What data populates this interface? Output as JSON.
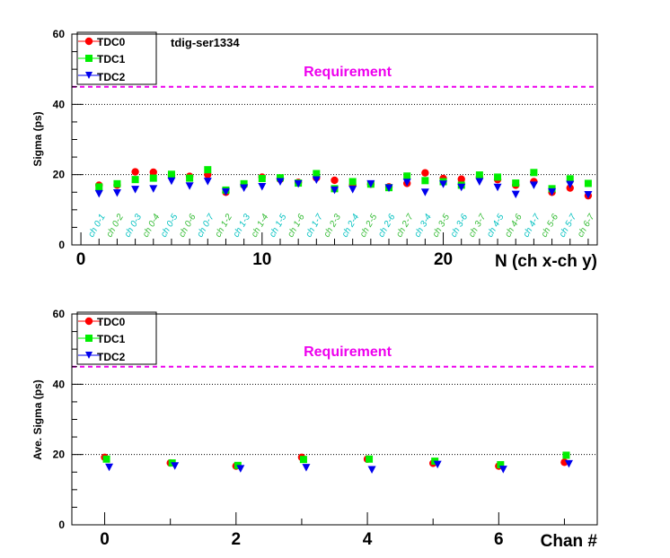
{
  "chart_data": [
    {
      "type": "scatter",
      "title": "",
      "annotation": "tdig-ser1334",
      "requirement": {
        "label": "Requirement",
        "value": 45
      },
      "xlabel": "N (ch x-ch y)",
      "ylabel": "Sigma (ps)",
      "xlim": [
        -0.5,
        28.5
      ],
      "ylim": [
        0,
        60
      ],
      "x_ticks": [
        "0",
        "10",
        "20"
      ],
      "y_ticks": [
        "0",
        "20",
        "40",
        "60"
      ],
      "grid": "horizontal dotted",
      "legend": "top-left",
      "channel_labels": [
        "ch 0-1",
        "ch 0-2",
        "ch 0-3",
        "ch 0-4",
        "ch 0-5",
        "ch 0-6",
        "ch 0-7",
        "ch 1-2",
        "ch 1-3",
        "ch 1-4",
        "ch 1-5",
        "ch 1-6",
        "ch 1-7",
        "ch 2-3",
        "ch 2-4",
        "ch 2-5",
        "ch 2-6",
        "ch 2-7",
        "ch 3-4",
        "ch 3-5",
        "ch 3-6",
        "ch 3-7",
        "ch 4-5",
        "ch 4-6",
        "ch 4-7",
        "ch 5-6",
        "ch 5-7",
        "ch 6-7"
      ],
      "x": [
        1,
        2,
        3,
        4,
        5,
        6,
        7,
        8,
        9,
        10,
        11,
        12,
        13,
        14,
        15,
        16,
        17,
        18,
        19,
        20,
        21,
        22,
        23,
        24,
        25,
        26,
        27,
        28
      ],
      "series": [
        {
          "name": "TDC0",
          "color": "#ff0000",
          "marker": "circle",
          "values": [
            17.0,
            17.0,
            20.8,
            20.7,
            19.8,
            19.5,
            20.0,
            15.0,
            17.0,
            19.3,
            18.7,
            17.8,
            19.1,
            18.4,
            17.0,
            17.3,
            16.5,
            17.5,
            20.5,
            18.9,
            18.7,
            19.3,
            18.6,
            17.0,
            18.0,
            15.0,
            16.2,
            14.0
          ]
        },
        {
          "name": "TDC1",
          "color": "#00ee00",
          "marker": "square",
          "values": [
            16.5,
            17.4,
            18.6,
            19.0,
            20.1,
            19.0,
            21.4,
            15.6,
            17.4,
            18.9,
            19.1,
            17.6,
            20.3,
            16.0,
            18.0,
            17.3,
            16.3,
            19.6,
            18.3,
            18.0,
            17.0,
            19.9,
            19.3,
            17.6,
            20.6,
            16.0,
            18.8,
            17.5
          ]
        },
        {
          "name": "TDC2",
          "color": "#0000ee",
          "marker": "triangle-down",
          "values": [
            14.6,
            14.8,
            15.8,
            16.0,
            18.2,
            16.8,
            18.1,
            15.1,
            16.2,
            16.6,
            18.0,
            17.4,
            18.5,
            15.6,
            15.8,
            17.4,
            16.2,
            17.8,
            15.0,
            17.3,
            16.4,
            18.0,
            16.4,
            14.4,
            17.0,
            15.1,
            17.2,
            14.3
          ]
        }
      ]
    },
    {
      "type": "scatter",
      "title": "",
      "requirement": {
        "label": "Requirement",
        "value": 45
      },
      "xlabel": "Chan #",
      "ylabel": "Ave. Sigma (ps)",
      "xlim": [
        -0.5,
        7.5
      ],
      "ylim": [
        0,
        60
      ],
      "x_ticks": [
        "0",
        "2",
        "4",
        "6"
      ],
      "y_ticks": [
        "0",
        "20",
        "40",
        "60"
      ],
      "grid": "horizontal dotted",
      "legend": "top-left",
      "x": [
        0,
        1,
        2,
        3,
        4,
        5,
        6,
        7
      ],
      "series": [
        {
          "name": "TDC0",
          "color": "#ff0000",
          "marker": "circle",
          "values": [
            19.2,
            17.6,
            16.7,
            19.2,
            18.7,
            17.5,
            16.7,
            17.8
          ]
        },
        {
          "name": "TDC1",
          "color": "#00ee00",
          "marker": "square",
          "values": [
            18.7,
            17.6,
            16.9,
            18.6,
            18.7,
            18.1,
            17.1,
            19.8
          ]
        },
        {
          "name": "TDC2",
          "color": "#0000ee",
          "marker": "triangle-down",
          "values": [
            16.4,
            16.8,
            16.0,
            16.3,
            15.7,
            17.2,
            15.8,
            17.4
          ]
        }
      ]
    }
  ]
}
